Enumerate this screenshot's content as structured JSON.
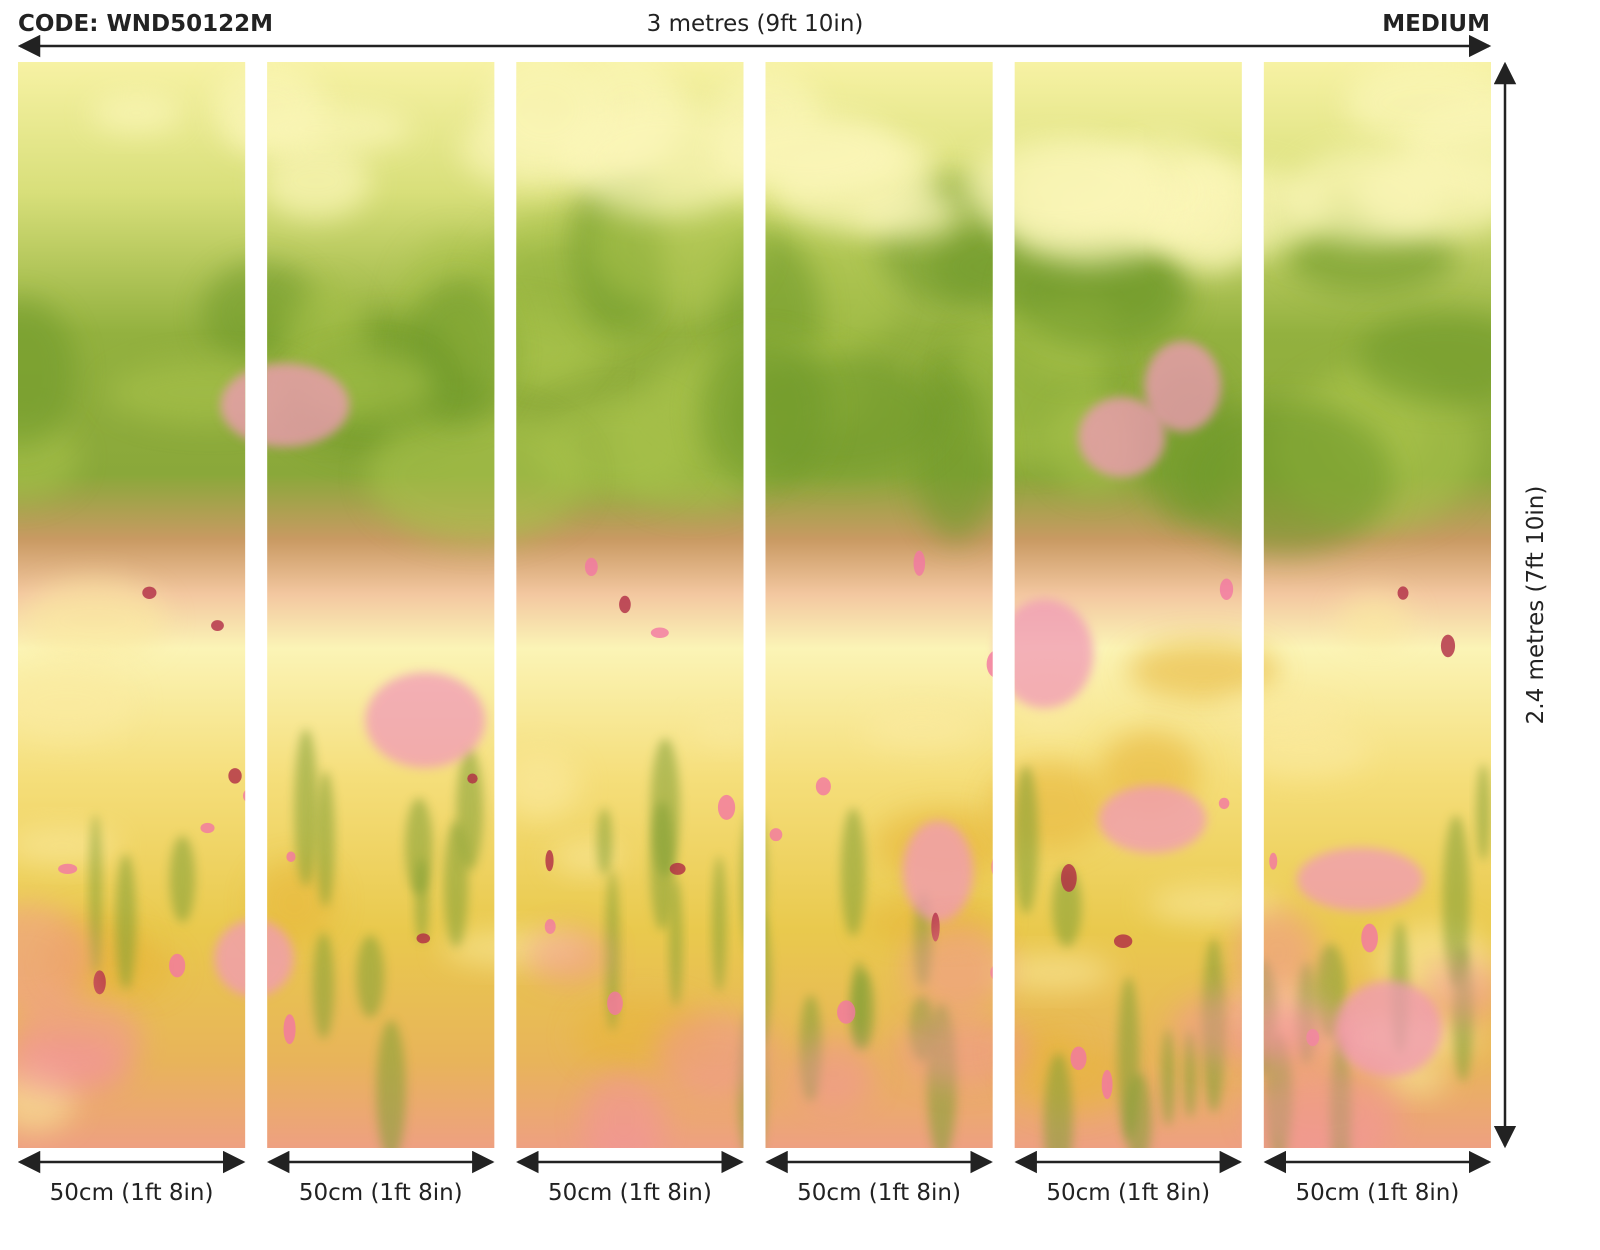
{
  "header": {
    "code": "CODE: WND50122M",
    "width": "3 metres (9ft 10in)",
    "size": "MEDIUM"
  },
  "height": "2.4 metres (7ft 10in)",
  "panels": [
    {
      "label": "50cm (1ft 8in)"
    },
    {
      "label": "50cm (1ft 8in)"
    },
    {
      "label": "50cm (1ft 8in)"
    },
    {
      "label": "50cm (1ft 8in)"
    },
    {
      "label": "50cm (1ft 8in)"
    },
    {
      "label": "50cm (1ft 8in)"
    }
  ]
}
